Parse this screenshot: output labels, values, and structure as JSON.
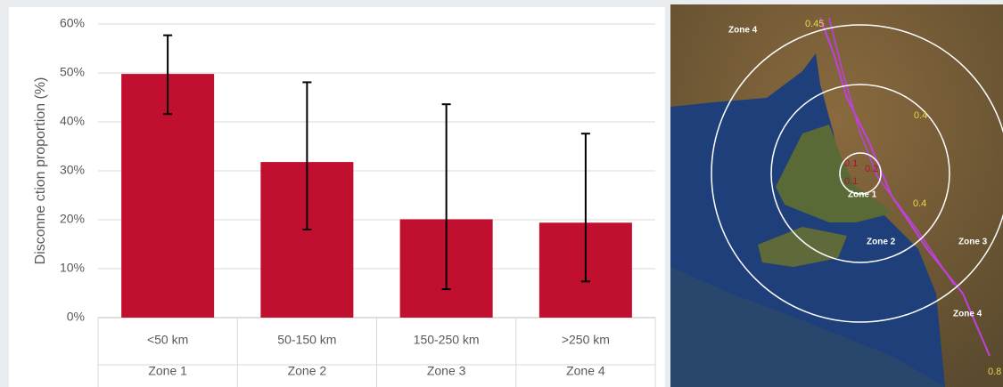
{
  "chart_data": {
    "type": "bar",
    "y_label": "Disconne ction proportion (%)",
    "categories": [
      "<50 km",
      "50-150 km",
      "150-250 km",
      ">250 km"
    ],
    "zones": [
      "Zone 1",
      "Zone 2",
      "Zone 3",
      "Zone 4"
    ],
    "values": [
      49.8,
      31.8,
      20.1,
      19.4
    ],
    "error_high": [
      57.7,
      48.1,
      43.6,
      37.6
    ],
    "error_low": [
      41.6,
      18.0,
      5.8,
      7.4
    ],
    "color": "#c00f2f",
    "ylim": [
      0,
      60
    ],
    "yticks": [
      {
        "value": 0,
        "label": "0%"
      },
      {
        "value": 10,
        "label": "10%"
      },
      {
        "value": 20,
        "label": "20%"
      },
      {
        "value": 30,
        "label": "30%"
      },
      {
        "value": 40,
        "label": "40%"
      },
      {
        "value": 50,
        "label": "50%"
      },
      {
        "value": 60,
        "label": "60%"
      }
    ],
    "grid": true
  },
  "map": {
    "labels": [
      "Zone 4",
      "0.45",
      "0.4",
      "0.1",
      "0.2",
      "0.1",
      "Zone 1",
      "0.4",
      "Zone 2",
      "Zone 3",
      "Zone 4",
      "0.8"
    ]
  }
}
